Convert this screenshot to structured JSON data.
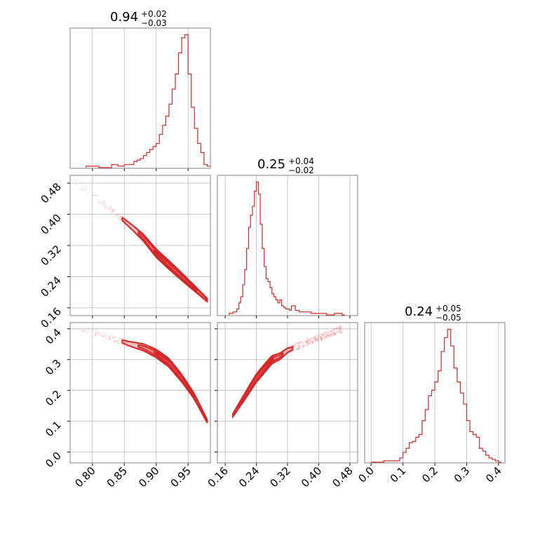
{
  "chart_data": [
    {
      "type": "histogram",
      "panel": "hist-0",
      "title": {
        "value": "0.94",
        "plus": "+0.02",
        "minus": "−0.03"
      },
      "xlim": [
        0.765,
        0.985
      ],
      "bins_x": [
        0.79,
        0.8,
        0.805,
        0.81,
        0.82,
        0.83,
        0.84,
        0.845,
        0.85,
        0.86,
        0.865,
        0.87,
        0.875,
        0.88,
        0.885,
        0.89,
        0.895,
        0.9,
        0.905,
        0.91,
        0.915,
        0.92,
        0.925,
        0.93,
        0.935,
        0.94,
        0.945,
        0.95,
        0.955,
        0.96,
        0.965,
        0.97,
        0.975,
        0.98
      ],
      "counts": [
        1,
        1,
        1,
        0,
        0,
        2,
        1,
        1,
        2,
        2,
        4,
        5,
        6,
        8,
        10,
        12,
        14,
        16,
        22,
        28,
        34,
        42,
        52,
        62,
        76,
        86,
        88,
        62,
        40,
        26,
        16,
        10,
        2,
        1
      ],
      "color": "#d62728"
    },
    {
      "type": "histogram",
      "panel": "hist-1",
      "title": {
        "value": "0.25",
        "plus": "+0.04",
        "minus": "−0.02"
      },
      "xlim": [
        0.14,
        0.5
      ],
      "bins_x": [
        0.17,
        0.18,
        0.19,
        0.195,
        0.2,
        0.205,
        0.21,
        0.215,
        0.22,
        0.225,
        0.23,
        0.235,
        0.24,
        0.245,
        0.25,
        0.255,
        0.26,
        0.265,
        0.27,
        0.275,
        0.28,
        0.285,
        0.29,
        0.295,
        0.3,
        0.305,
        0.31,
        0.315,
        0.32,
        0.325,
        0.33,
        0.34,
        0.35,
        0.36,
        0.38,
        0.4,
        0.42,
        0.44,
        0.46
      ],
      "counts": [
        1,
        2,
        4,
        8,
        12,
        20,
        30,
        44,
        58,
        66,
        72,
        82,
        88,
        80,
        60,
        44,
        32,
        24,
        22,
        18,
        14,
        12,
        10,
        8,
        10,
        6,
        5,
        4,
        4,
        3,
        6,
        3,
        2,
        2,
        1,
        1,
        0,
        1,
        0
      ],
      "color": "#d62728"
    },
    {
      "type": "histogram",
      "panel": "hist-2",
      "title": {
        "value": "0.24",
        "plus": "+0.05",
        "minus": "−0.05"
      },
      "xlim": [
        -0.02,
        0.42
      ],
      "bins_x": [
        0.0,
        0.02,
        0.04,
        0.06,
        0.08,
        0.09,
        0.1,
        0.11,
        0.12,
        0.13,
        0.14,
        0.15,
        0.16,
        0.17,
        0.18,
        0.19,
        0.2,
        0.21,
        0.22,
        0.23,
        0.24,
        0.25,
        0.26,
        0.27,
        0.28,
        0.29,
        0.3,
        0.31,
        0.32,
        0.33,
        0.34,
        0.35,
        0.36,
        0.37,
        0.38,
        0.39,
        0.4
      ],
      "counts": [
        0,
        0,
        1,
        1,
        1,
        3,
        7,
        10,
        14,
        15,
        18,
        20,
        30,
        38,
        48,
        52,
        58,
        66,
        80,
        90,
        96,
        84,
        68,
        58,
        50,
        42,
        30,
        22,
        20,
        18,
        10,
        8,
        5,
        3,
        2,
        1,
        0
      ],
      "color": "#d62728"
    },
    {
      "type": "contour",
      "panel": "scatter-1-0",
      "xlim": [
        0.765,
        0.985
      ],
      "ylim": [
        0.14,
        0.5
      ],
      "trend": {
        "x": [
          0.77,
          0.8,
          0.83,
          0.86,
          0.88,
          0.9,
          0.92,
          0.94,
          0.96,
          0.98
        ],
        "y": [
          0.49,
          0.45,
          0.41,
          0.37,
          0.34,
          0.3,
          0.27,
          0.24,
          0.21,
          0.18
        ]
      },
      "center": [
        0.935,
        0.245
      ],
      "color": "#d62728"
    },
    {
      "type": "contour",
      "panel": "scatter-2-0",
      "xlim": [
        0.765,
        0.985
      ],
      "ylim": [
        -0.035,
        0.42
      ],
      "trend": {
        "x": [
          0.77,
          0.8,
          0.83,
          0.86,
          0.88,
          0.9,
          0.92,
          0.94,
          0.96,
          0.98
        ],
        "y": [
          0.41,
          0.39,
          0.37,
          0.35,
          0.34,
          0.32,
          0.29,
          0.24,
          0.18,
          0.1
        ]
      },
      "center": [
        0.935,
        0.24
      ],
      "color": "#d62728"
    },
    {
      "type": "contour",
      "panel": "scatter-2-1",
      "xlim": [
        0.14,
        0.5
      ],
      "ylim": [
        -0.035,
        0.42
      ],
      "trend": {
        "x": [
          0.18,
          0.2,
          0.22,
          0.24,
          0.26,
          0.28,
          0.3,
          0.32,
          0.34,
          0.36,
          0.38,
          0.42,
          0.46
        ],
        "y": [
          0.12,
          0.16,
          0.2,
          0.24,
          0.27,
          0.3,
          0.31,
          0.33,
          0.34,
          0.35,
          0.36,
          0.38,
          0.4
        ]
      },
      "center": [
        0.245,
        0.24
      ],
      "color": "#d62728"
    }
  ],
  "axes": {
    "p0": {
      "ticks": [
        0.8,
        0.85,
        0.9,
        0.95
      ],
      "labels": [
        "0.80",
        "0.85",
        "0.90",
        "0.95"
      ]
    },
    "p1": {
      "ticks": [
        0.16,
        0.24,
        0.32,
        0.4,
        0.48
      ],
      "labels": [
        "0.16",
        "0.24",
        "0.32",
        "0.40",
        "0.48"
      ]
    },
    "p2": {
      "ticks": [
        0.0,
        0.1,
        0.2,
        0.3,
        0.4
      ],
      "labels": [
        "0.0",
        "0.1",
        "0.2",
        "0.3",
        "0.4"
      ]
    }
  },
  "style": {
    "accent": "#d62728",
    "grid": "#b8b8b8",
    "frame": "#7f7f7f"
  }
}
